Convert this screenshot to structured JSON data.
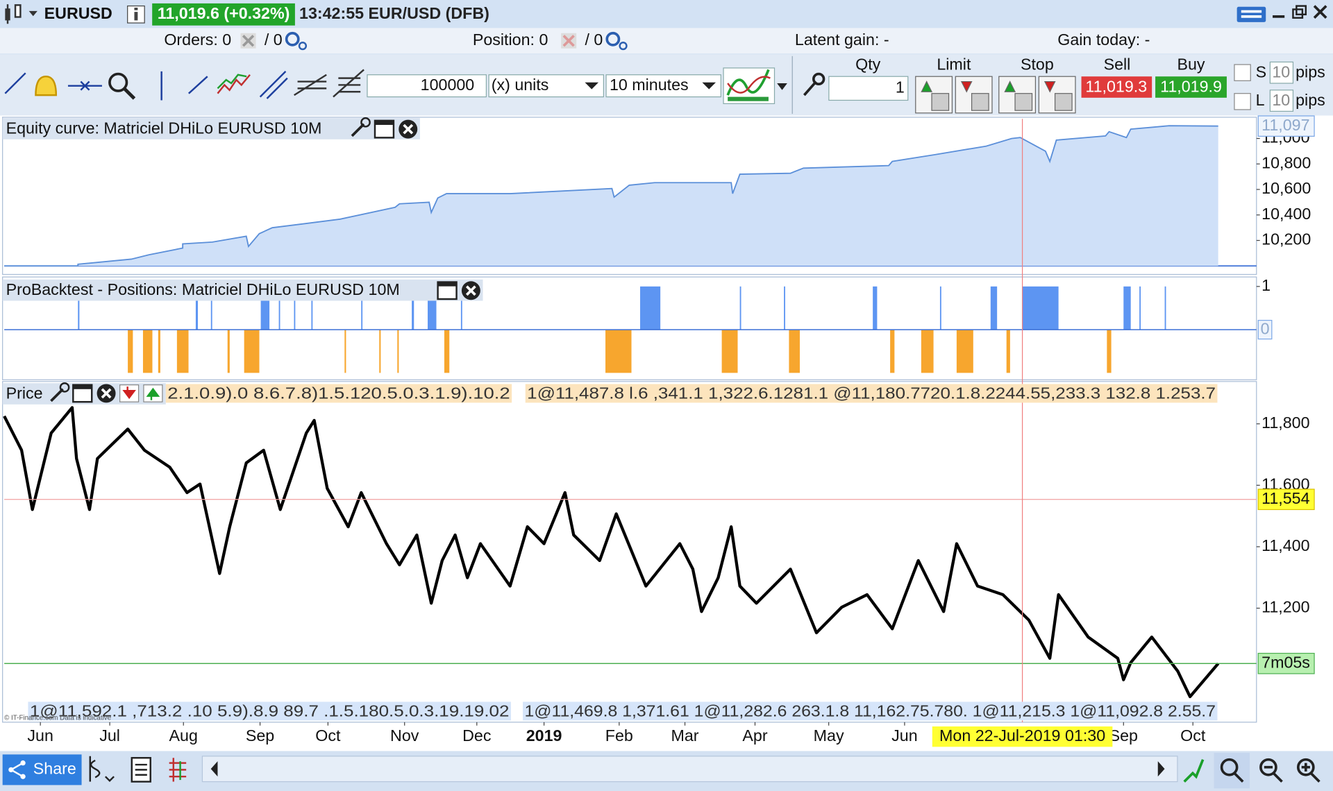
{
  "header": {
    "symbol": "EURUSD",
    "quote": "11,019.6 (+0.32%)",
    "time": "13:42:55 EUR/USD (DFB)"
  },
  "status": {
    "orders_label": "Orders: 0",
    "orders_pending": "/ 0",
    "position_label": "Position: 0",
    "position_pending": "/ 0",
    "latent_gain": "Latent gain: -",
    "gain_today": "Gain today: -"
  },
  "toolbar": {
    "amount": "100000",
    "units": "(x) units",
    "timeframe": "10 minutes"
  },
  "order_ticket": {
    "qty_label": "Qty",
    "qty": "1",
    "limit_label": "Limit",
    "stop_label": "Stop",
    "sell_label": "Sell",
    "sell_price": "11,019.3",
    "buy_label": "Buy",
    "buy_price": "11,019.9",
    "s_label": "S",
    "s_pips": "10",
    "l_label": "L",
    "l_pips": "10",
    "pips_1": "pips",
    "pips_2": "pips"
  },
  "x_axis": {
    "xlim": [
      0,
      17.33
    ],
    "xticks": [
      {
        "value": 0.5,
        "label": "Jun"
      },
      {
        "value": 1.46,
        "label": "Jul"
      },
      {
        "value": 2.48,
        "label": "Aug"
      },
      {
        "value": 3.54,
        "label": "Sep"
      },
      {
        "value": 4.48,
        "label": "Oct"
      },
      {
        "value": 5.54,
        "label": "Nov"
      },
      {
        "value": 6.54,
        "label": "Dec"
      },
      {
        "value": 7.47,
        "label": "2019"
      },
      {
        "value": 8.51,
        "label": "Feb"
      },
      {
        "value": 9.42,
        "label": "Mar"
      },
      {
        "value": 10.39,
        "label": "Apr"
      },
      {
        "value": 11.41,
        "label": "May"
      },
      {
        "value": 12.46,
        "label": "Jun"
      },
      {
        "value": 15.49,
        "label": "Sep"
      },
      {
        "value": 16.45,
        "label": "Oct"
      }
    ]
  },
  "crosshair": {
    "x": 14.09,
    "label": "Mon 22-Jul-2019 01:30"
  },
  "equity": {
    "title": "Equity curve: Matriciel DHiLo EURUSD 10M",
    "ylim": [
      10000,
      11153
    ],
    "yticks": [
      {
        "value": 10200,
        "label": "10,200"
      },
      {
        "value": 10400,
        "label": "10,400"
      },
      {
        "value": 10600,
        "label": "10,600"
      },
      {
        "value": 10800,
        "label": "10,800"
      },
      {
        "value": 11000,
        "label": "11,000"
      }
    ],
    "last": {
      "value": 11097,
      "label": "11,097"
    },
    "x": [
      0,
      1.02,
      1.02,
      1.76,
      2.0,
      2.47,
      2.47,
      2.88,
      3.35,
      3.38,
      3.53,
      3.71,
      4.18,
      4.65,
      5.41,
      5.47,
      5.88,
      5.91,
      6.0,
      6.12,
      7.0,
      8.41,
      8.44,
      8.65,
      9.0,
      10.06,
      10.08,
      10.18,
      10.88,
      11.06,
      12.24,
      12.29,
      12.88,
      13.59,
      13.94,
      14.06,
      14.41,
      14.47,
      14.56,
      15.24,
      15.29,
      15.53,
      15.59,
      16.12,
      16.8
    ],
    "values": [
      10000,
      10000,
      10013,
      10053,
      10087,
      10140,
      10173,
      10187,
      10233,
      10153,
      10253,
      10300,
      10333,
      10367,
      10460,
      10487,
      10500,
      10420,
      10533,
      10567,
      10567,
      10607,
      10540,
      10633,
      10653,
      10653,
      10567,
      10720,
      10727,
      10767,
      10787,
      10820,
      10873,
      10940,
      11000,
      11007,
      10900,
      10820,
      10987,
      11020,
      11053,
      11007,
      11073,
      11100,
      11097
    ]
  },
  "positions": {
    "title": "ProBacktest - Positions: Matriciel DHiLo EURUSD 10M",
    "ylim": [
      -1.14,
      1.18
    ],
    "yticks": [
      1,
      0
    ],
    "long_value": 1,
    "short_value": -1,
    "long_spans": [
      [
        1.02,
        1.04
      ],
      [
        2.65,
        2.68
      ],
      [
        2.86,
        2.87
      ],
      [
        3.55,
        3.67
      ],
      [
        3.8,
        3.81
      ],
      [
        4.01,
        4.02
      ],
      [
        4.25,
        4.26
      ],
      [
        4.94,
        4.95
      ],
      [
        5.64,
        5.67
      ],
      [
        5.86,
        5.98
      ],
      [
        6.32,
        6.33
      ],
      [
        8.8,
        9.08
      ],
      [
        10.18,
        10.19
      ],
      [
        10.79,
        10.8
      ],
      [
        12.02,
        12.08
      ],
      [
        12.95,
        12.96
      ],
      [
        13.65,
        13.74
      ],
      [
        14.09,
        14.59
      ],
      [
        15.49,
        15.59
      ],
      [
        15.71,
        15.72
      ],
      [
        16.06,
        16.07
      ]
    ],
    "short_spans": [
      [
        1.71,
        1.78
      ],
      [
        1.92,
        2.05
      ],
      [
        2.13,
        2.16
      ],
      [
        2.39,
        2.55
      ],
      [
        3.09,
        3.12
      ],
      [
        3.32,
        3.53
      ],
      [
        4.71,
        4.73
      ],
      [
        5.19,
        5.21
      ],
      [
        5.44,
        5.46
      ],
      [
        6.09,
        6.16
      ],
      [
        8.32,
        8.68
      ],
      [
        9.93,
        10.15
      ],
      [
        10.86,
        11.01
      ],
      [
        12.26,
        12.32
      ],
      [
        12.69,
        12.86
      ],
      [
        13.18,
        13.41
      ],
      [
        13.87,
        13.92
      ],
      [
        15.26,
        15.32
      ]
    ]
  },
  "price": {
    "title": "Price",
    "ylim": [
      10829,
      11935
    ],
    "yticks": [
      {
        "value": 11200,
        "label": "11,200"
      },
      {
        "value": 11400,
        "label": "11,400"
      },
      {
        "value": 11600,
        "label": "11,600"
      },
      {
        "value": 11800,
        "label": "11,800"
      }
    ],
    "level": {
      "value": 11554,
      "label": "11,554"
    },
    "candle_timer": "7m05s",
    "x": [
      0,
      0.24,
      0.39,
      0.65,
      0.94,
      1.0,
      1.18,
      1.29,
      1.71,
      1.94,
      2.29,
      2.53,
      2.71,
      2.98,
      3.12,
      3.35,
      3.59,
      3.82,
      4.18,
      4.29,
      4.47,
      4.76,
      4.94,
      5.29,
      5.47,
      5.71,
      5.91,
      6.06,
      6.24,
      6.41,
      6.59,
      7.0,
      7.24,
      7.47,
      7.76,
      7.88,
      8.24,
      8.47,
      8.88,
      9.35,
      9.53,
      9.65,
      9.88,
      10.06,
      10.18,
      10.41,
      10.88,
      11.24,
      11.59,
      11.94,
      12.29,
      12.65,
      13.0,
      13.18,
      13.47,
      13.82,
      14.18,
      14.47,
      14.59,
      15.0,
      15.41,
      15.49,
      15.59,
      15.88,
      16.24,
      16.41,
      16.8
    ],
    "values": [
      11825,
      11714,
      11521,
      11770,
      11853,
      11687,
      11521,
      11687,
      11783,
      11714,
      11659,
      11576,
      11604,
      11313,
      11465,
      11673,
      11714,
      11521,
      11770,
      11811,
      11590,
      11465,
      11576,
      11410,
      11341,
      11438,
      11216,
      11355,
      11438,
      11299,
      11410,
      11272,
      11465,
      11410,
      11576,
      11438,
      11355,
      11507,
      11272,
      11410,
      11327,
      11189,
      11299,
      11465,
      11272,
      11216,
      11327,
      11120,
      11203,
      11244,
      11133,
      11355,
      11189,
      11410,
      11272,
      11244,
      11161,
      11037,
      11244,
      11106,
      11037,
      10967,
      11023,
      11106,
      10995,
      10912,
      11020
    ],
    "top_labels": [
      "2.1.0.9).0 8.6.7.8)1.5.120.5.0.3.1.9).10.2",
      "1@11,487.8 l.6 ,341.1 1,322.6.1281.1  @11,180.7720.1.8.2244.55,233.3 132.8 1.253.7"
    ],
    "bottom_labels": [
      "1@11,592.1 ,713.2 .10 5.9).8.9 89.7 .1.5.180.5.0.3.19.19.02",
      "1@11,469.8 1,371.61 1@11,282.6 263.1.8 11,162.75.780. 1@11,215.3 1@11,092.8 2.55.7"
    ],
    "watermark": "© IT-Finance.com Data is indicative"
  },
  "footer": {
    "share": "Share"
  }
}
